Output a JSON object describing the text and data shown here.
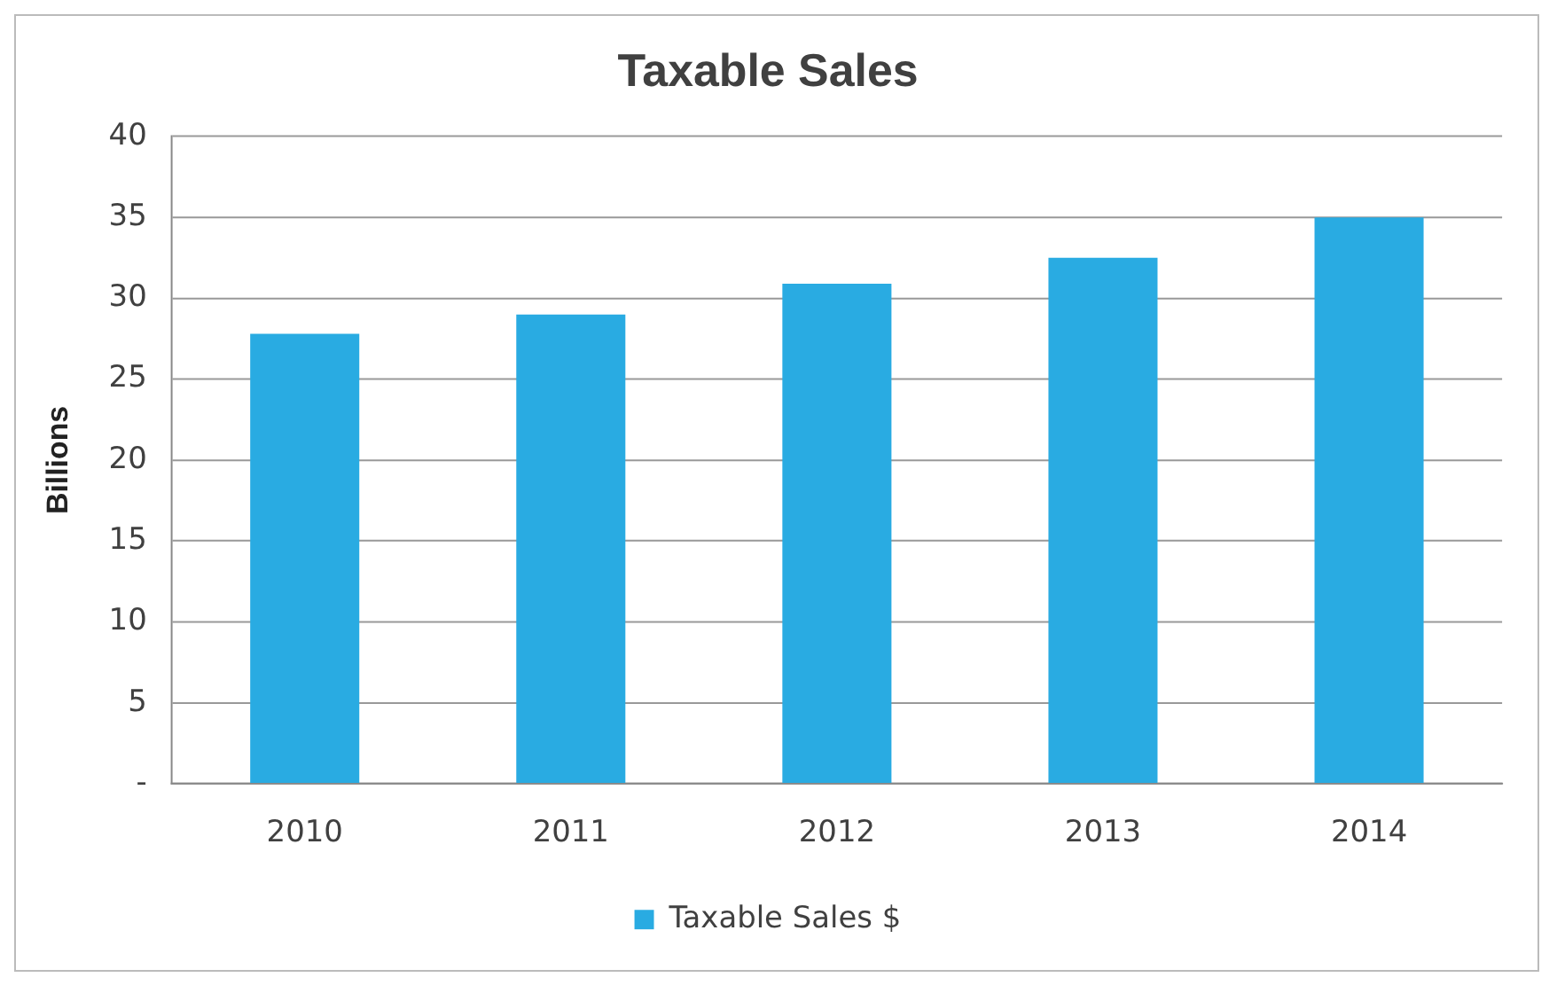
{
  "chart_data": {
    "type": "bar",
    "title": "Taxable Sales",
    "ylabel": "Billions",
    "categories": [
      "2010",
      "2011",
      "2012",
      "2013",
      "2014"
    ],
    "series": [
      {
        "name": "Taxable Sales $",
        "color": "#29abe2",
        "values": [
          27.8,
          29,
          30.9,
          32.5,
          35
        ]
      }
    ],
    "ylim": [
      0,
      40
    ],
    "yticks": [
      {
        "value": 0,
        "label": "-"
      },
      5,
      10,
      15,
      20,
      25,
      30,
      35,
      40
    ],
    "grid": "y",
    "legend": "bottom"
  }
}
